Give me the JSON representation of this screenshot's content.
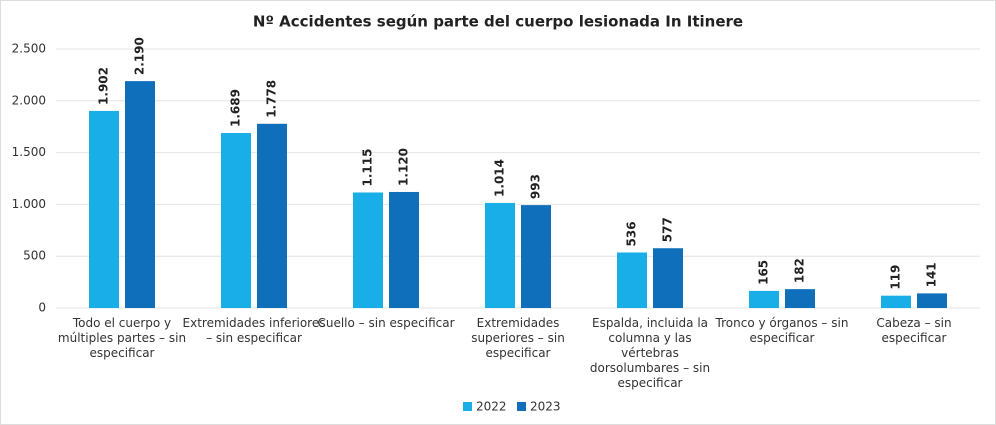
{
  "chart_data": {
    "type": "bar",
    "title": "Nº Accidentes según parte del cuerpo lesionada In Itinere",
    "categories": [
      "Todo el cuerpo y múltiples partes – sin especificar",
      "Extremidades inferiores – sin especificar",
      "Cuello – sin especificar",
      "Extremidades superiores – sin especificar",
      "Espalda, incluida la columna y las vértebras dorsolumbares – sin especificar",
      "Tronco y órganos – sin especificar",
      "Cabeza – sin especificar"
    ],
    "series": [
      {
        "name": "2022",
        "color": "#1aaee8",
        "values": [
          1902,
          1689,
          1115,
          1014,
          536,
          165,
          119
        ],
        "value_labels": [
          "1.902",
          "1.689",
          "1.115",
          "1.014",
          "536",
          "165",
          "119"
        ]
      },
      {
        "name": "2023",
        "color": "#0f6fba",
        "values": [
          2190,
          1778,
          1120,
          993,
          577,
          182,
          141
        ],
        "value_labels": [
          "2.190",
          "1.778",
          "1.120",
          "993",
          "577",
          "182",
          "141"
        ]
      }
    ],
    "ylim": [
      0,
      2500
    ],
    "yticks": [
      0,
      500,
      {
        "value": 1000,
        "label": "1.000"
      },
      {
        "value": 1500,
        "label": "1.500"
      },
      {
        "value": 2000,
        "label": "2.000"
      },
      {
        "value": 2500,
        "label": "2.500"
      }
    ],
    "grid": true,
    "legend": "bottom"
  }
}
